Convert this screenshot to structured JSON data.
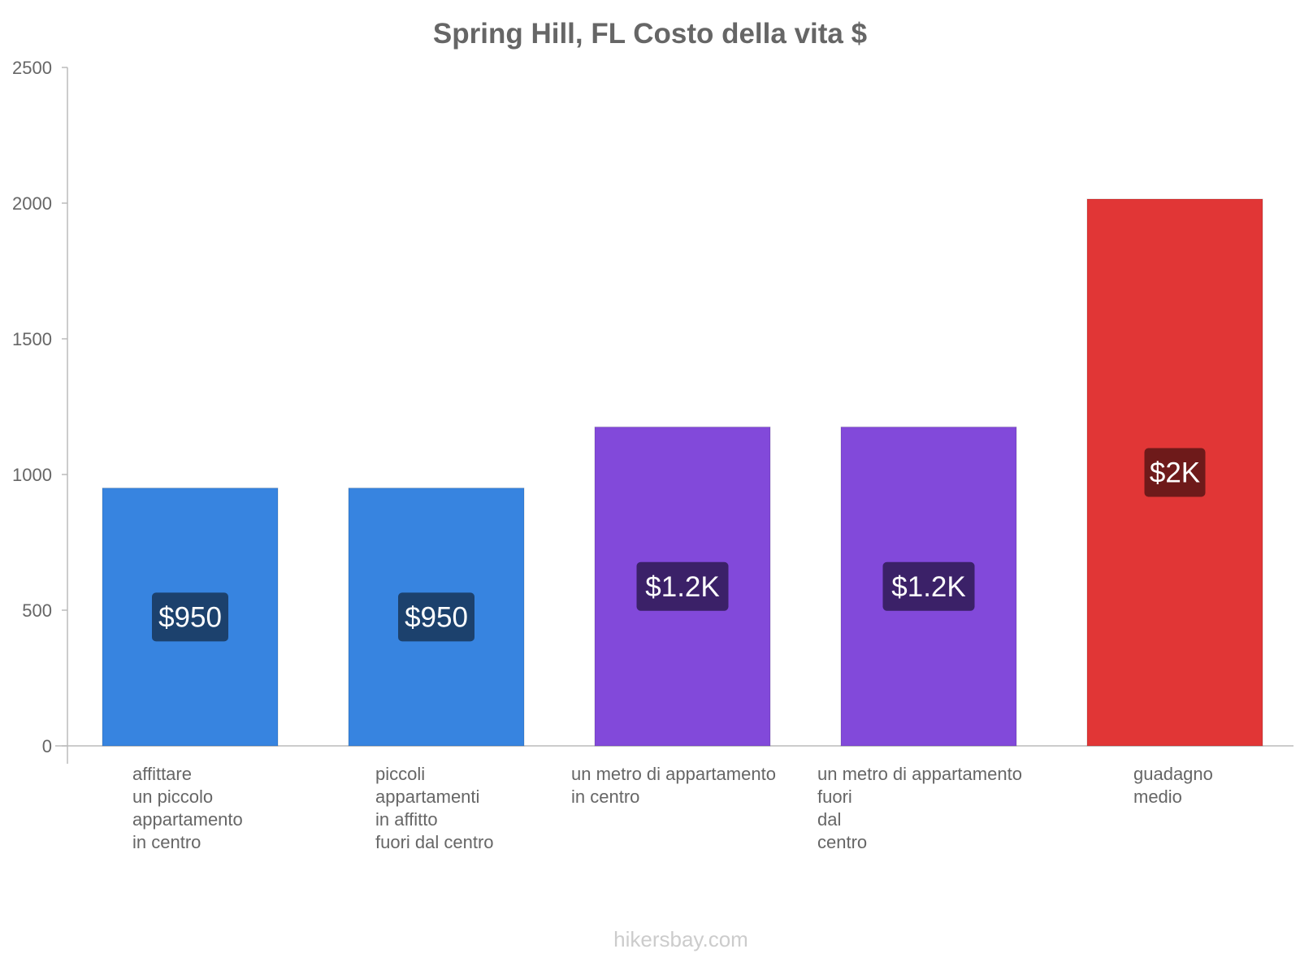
{
  "chart_data": {
    "type": "bar",
    "title": "Spring Hill, FL Costo della vita $",
    "xlabel": "",
    "ylabel": "",
    "ylim": [
      0,
      2500
    ],
    "yticks": [
      0,
      500,
      1000,
      1500,
      2000,
      2500
    ],
    "categories": [
      [
        "affittare",
        "un piccolo",
        "appartamento",
        "in centro"
      ],
      [
        "piccoli",
        "appartamenti",
        "in affitto",
        "fuori dal centro"
      ],
      [
        "un metro di appartamento",
        "in centro"
      ],
      [
        "un metro di appartamento",
        "fuori",
        "dal",
        "centro"
      ],
      [
        "guadagno",
        "medio"
      ]
    ],
    "values": [
      950,
      950,
      1175,
      1175,
      2015
    ],
    "value_labels": [
      "$950",
      "$950",
      "$1.2K",
      "$1.2K",
      "$2K"
    ],
    "bar_colors": [
      "#3784e0",
      "#3784e0",
      "#8249da",
      "#8249da",
      "#e13636"
    ],
    "label_bg_colors": [
      "#1c416d",
      "#1c416d",
      "#3b2168",
      "#3b2168",
      "#6e1a1a"
    ],
    "grid": false,
    "legend": "none"
  },
  "watermark": "hikersbay.com"
}
